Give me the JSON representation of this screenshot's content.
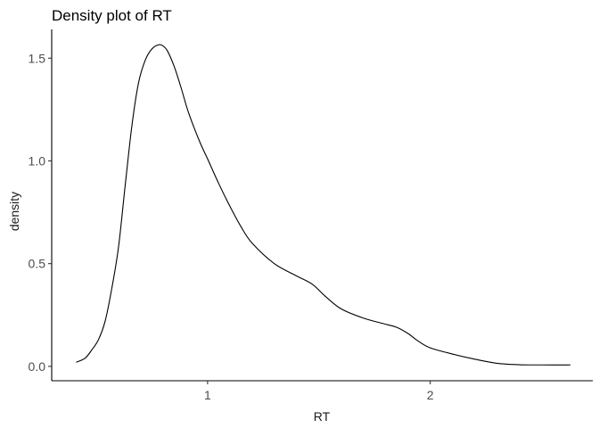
{
  "chart_data": {
    "type": "line",
    "title": "Density plot of RT",
    "xlabel": "RT",
    "ylabel": "density",
    "xlim": [
      0.3,
      2.73
    ],
    "ylim": [
      -0.07,
      1.64
    ],
    "x_ticks": [
      1,
      2
    ],
    "x_tick_labels": [
      "1",
      "2"
    ],
    "y_ticks": [
      0.0,
      0.5,
      1.0,
      1.5
    ],
    "y_tick_labels": [
      "0.0",
      "0.5",
      "1.0",
      "1.5"
    ],
    "grid": false,
    "legend": "none",
    "line_color": "#000000",
    "series": [
      {
        "x": [
          0.41,
          0.45,
          0.48,
          0.51,
          0.54,
          0.57,
          0.6,
          0.63,
          0.66,
          0.69,
          0.72,
          0.75,
          0.78,
          0.8,
          0.82,
          0.85,
          0.88,
          0.91,
          0.94,
          0.97,
          1.0,
          1.05,
          1.1,
          1.15,
          1.2,
          1.3,
          1.4,
          1.47,
          1.53,
          1.6,
          1.7,
          1.8,
          1.85,
          1.9,
          1.95,
          2.0,
          2.1,
          2.2,
          2.3,
          2.4,
          2.5,
          2.63
        ],
        "y": [
          0.02,
          0.04,
          0.08,
          0.13,
          0.22,
          0.38,
          0.58,
          0.88,
          1.17,
          1.38,
          1.49,
          1.545,
          1.565,
          1.56,
          1.535,
          1.46,
          1.36,
          1.25,
          1.16,
          1.08,
          1.01,
          0.89,
          0.78,
          0.68,
          0.6,
          0.5,
          0.44,
          0.4,
          0.34,
          0.28,
          0.235,
          0.205,
          0.19,
          0.16,
          0.12,
          0.09,
          0.06,
          0.035,
          0.015,
          0.008,
          0.007,
          0.007
        ]
      }
    ]
  }
}
